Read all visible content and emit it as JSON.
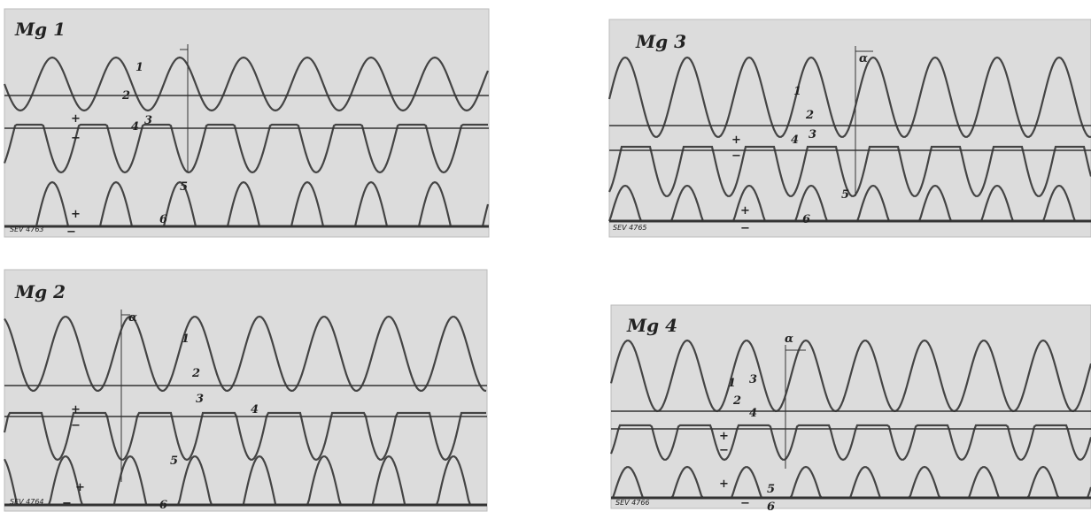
{
  "panels": [
    {
      "title": "Mg 1",
      "code": "SEV 4763",
      "labels": [
        "1",
        "2",
        "3",
        "4",
        "5",
        "6",
        "+",
        "−",
        "+",
        "−"
      ]
    },
    {
      "title": "Mg 2",
      "code": "SEV 4764",
      "labels": [
        "1",
        "2",
        "3",
        "4",
        "5",
        "6",
        "+",
        "−",
        "+",
        "−",
        "α"
      ]
    },
    {
      "title": "Mg 3",
      "code": "SEV 4765",
      "labels": [
        "1",
        "2",
        "3",
        "4",
        "5",
        "6",
        "+",
        "−",
        "+",
        "−",
        "α"
      ]
    },
    {
      "title": "Mg 4",
      "code": "SEV 4766",
      "labels": [
        "1",
        "2",
        "3",
        "4",
        "5",
        "6",
        "+",
        "−",
        "+",
        "−",
        "α"
      ]
    }
  ]
}
